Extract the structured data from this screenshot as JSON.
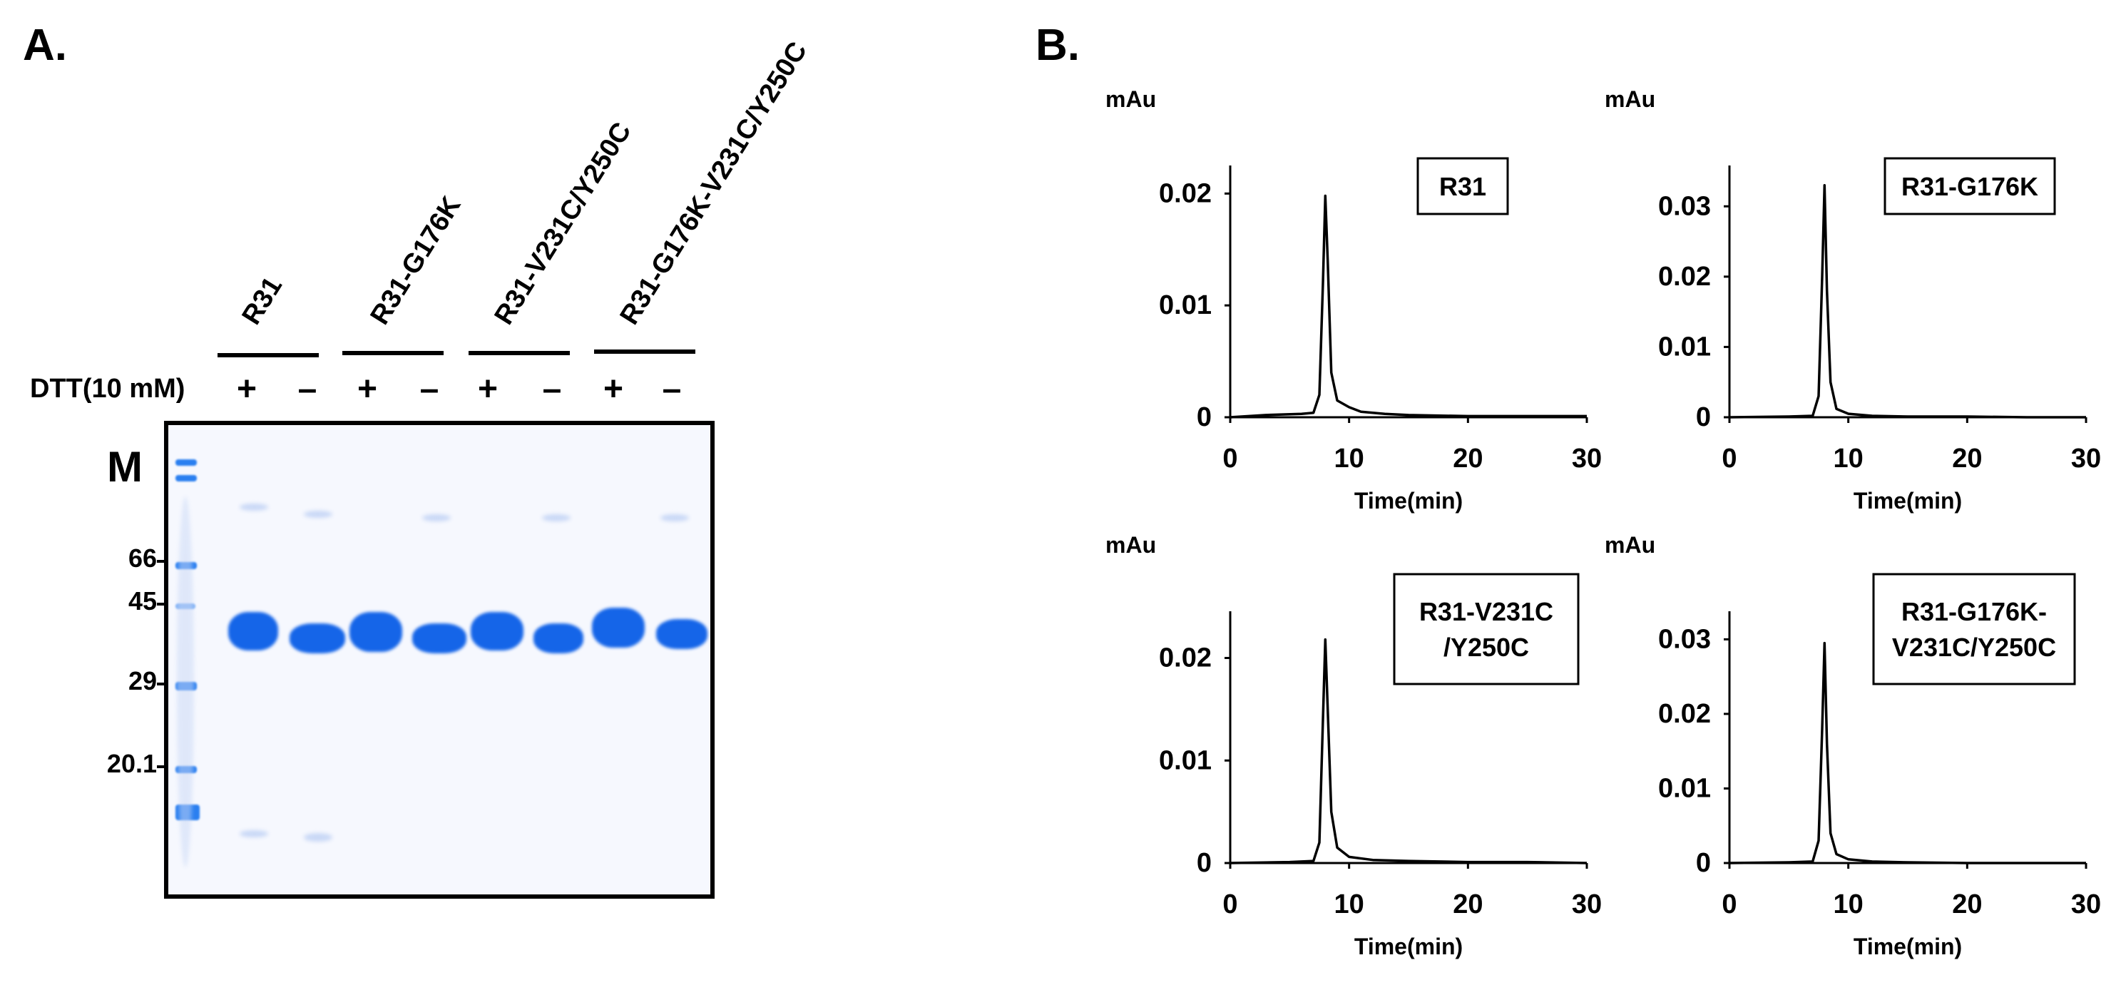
{
  "panels": {
    "a_label": "A.",
    "b_label": "B."
  },
  "gel": {
    "lane_groups": [
      "R31",
      "R31-G176K",
      "R31-V231C/Y250C",
      "R31-G176K-V231C/Y250C"
    ],
    "dtt_label": "DTT(10 mM)",
    "dtt_signs": [
      "+",
      "–",
      "+",
      "–",
      "+",
      "–",
      "+",
      "–"
    ],
    "marker_label": "M",
    "marker_weights": [
      "66",
      "45",
      "29",
      "20.1"
    ],
    "band_color": "#1565e8"
  },
  "chart_data": [
    {
      "type": "line",
      "title": "R31",
      "ylabel": "mAu",
      "xlabel": "Time(min)",
      "xlim": [
        0,
        30
      ],
      "ylim": [
        0,
        0.022
      ],
      "xticks": [
        "0",
        "10",
        "20",
        "30"
      ],
      "yticks": [
        "0",
        "0.01",
        "0.02"
      ],
      "ytick_values": [
        0,
        0.01,
        0.02
      ],
      "series": [
        {
          "name": "R31",
          "x": [
            0,
            3,
            6,
            7,
            7.5,
            7.8,
            8.0,
            8.2,
            8.5,
            9,
            10,
            11,
            13,
            15,
            20,
            25,
            30
          ],
          "y": [
            0,
            0.0002,
            0.0003,
            0.0004,
            0.002,
            0.012,
            0.0198,
            0.014,
            0.004,
            0.0015,
            0.0009,
            0.0005,
            0.0003,
            0.0002,
            0.0001,
            0.0001,
            0.0001
          ]
        }
      ]
    },
    {
      "type": "line",
      "title": "R31-G176K",
      "ylabel": "mAu",
      "xlabel": "Time(min)",
      "xlim": [
        0,
        30
      ],
      "ylim": [
        0,
        0.035
      ],
      "xticks": [
        "0",
        "10",
        "20",
        "30"
      ],
      "yticks": [
        "0",
        "0.01",
        "0.02",
        "0.03"
      ],
      "ytick_values": [
        0,
        0.01,
        0.02,
        0.03
      ],
      "series": [
        {
          "name": "R31-G176K",
          "x": [
            0,
            5,
            7,
            7.5,
            7.8,
            8.0,
            8.2,
            8.5,
            9,
            10,
            12,
            15,
            20,
            25,
            30
          ],
          "y": [
            0,
            0.0001,
            0.0002,
            0.003,
            0.02,
            0.033,
            0.018,
            0.005,
            0.0012,
            0.0005,
            0.0002,
            0.0001,
            0.0001,
            0,
            0
          ]
        }
      ]
    },
    {
      "type": "line",
      "title": "R31-V231C\n/Y250C",
      "ylabel": "mAu",
      "xlabel": "Time(min)",
      "xlim": [
        0,
        30
      ],
      "ylim": [
        0,
        0.024
      ],
      "xticks": [
        "0",
        "10",
        "20",
        "30"
      ],
      "yticks": [
        "0",
        "0.01",
        "0.02"
      ],
      "ytick_values": [
        0,
        0.01,
        0.02
      ],
      "series": [
        {
          "name": "R31-V231C/Y250C",
          "x": [
            0,
            5,
            7,
            7.5,
            7.8,
            8.0,
            8.2,
            8.5,
            9,
            10,
            12,
            15,
            20,
            25,
            30
          ],
          "y": [
            0,
            0.0001,
            0.0002,
            0.002,
            0.014,
            0.0218,
            0.015,
            0.005,
            0.0015,
            0.0006,
            0.0003,
            0.0002,
            0.0001,
            0.0001,
            0
          ]
        }
      ]
    },
    {
      "type": "line",
      "title": "R31-G176K-\nV231C/Y250C",
      "ylabel": "mAu",
      "xlabel": "Time(min)",
      "xlim": [
        0,
        30
      ],
      "ylim": [
        0,
        0.033
      ],
      "xticks": [
        "0",
        "10",
        "20",
        "30"
      ],
      "yticks": [
        "0",
        "0.01",
        "0.02",
        "0.03"
      ],
      "ytick_values": [
        0,
        0.01,
        0.02,
        0.03
      ],
      "series": [
        {
          "name": "R31-G176K-V231C/Y250C",
          "x": [
            0,
            5,
            7,
            7.5,
            7.8,
            8.0,
            8.2,
            8.5,
            9,
            10,
            12,
            15,
            20,
            25,
            30
          ],
          "y": [
            0,
            0.0001,
            0.0002,
            0.003,
            0.018,
            0.0295,
            0.016,
            0.004,
            0.0012,
            0.0005,
            0.0002,
            0.0001,
            0,
            0,
            0
          ]
        }
      ]
    }
  ]
}
